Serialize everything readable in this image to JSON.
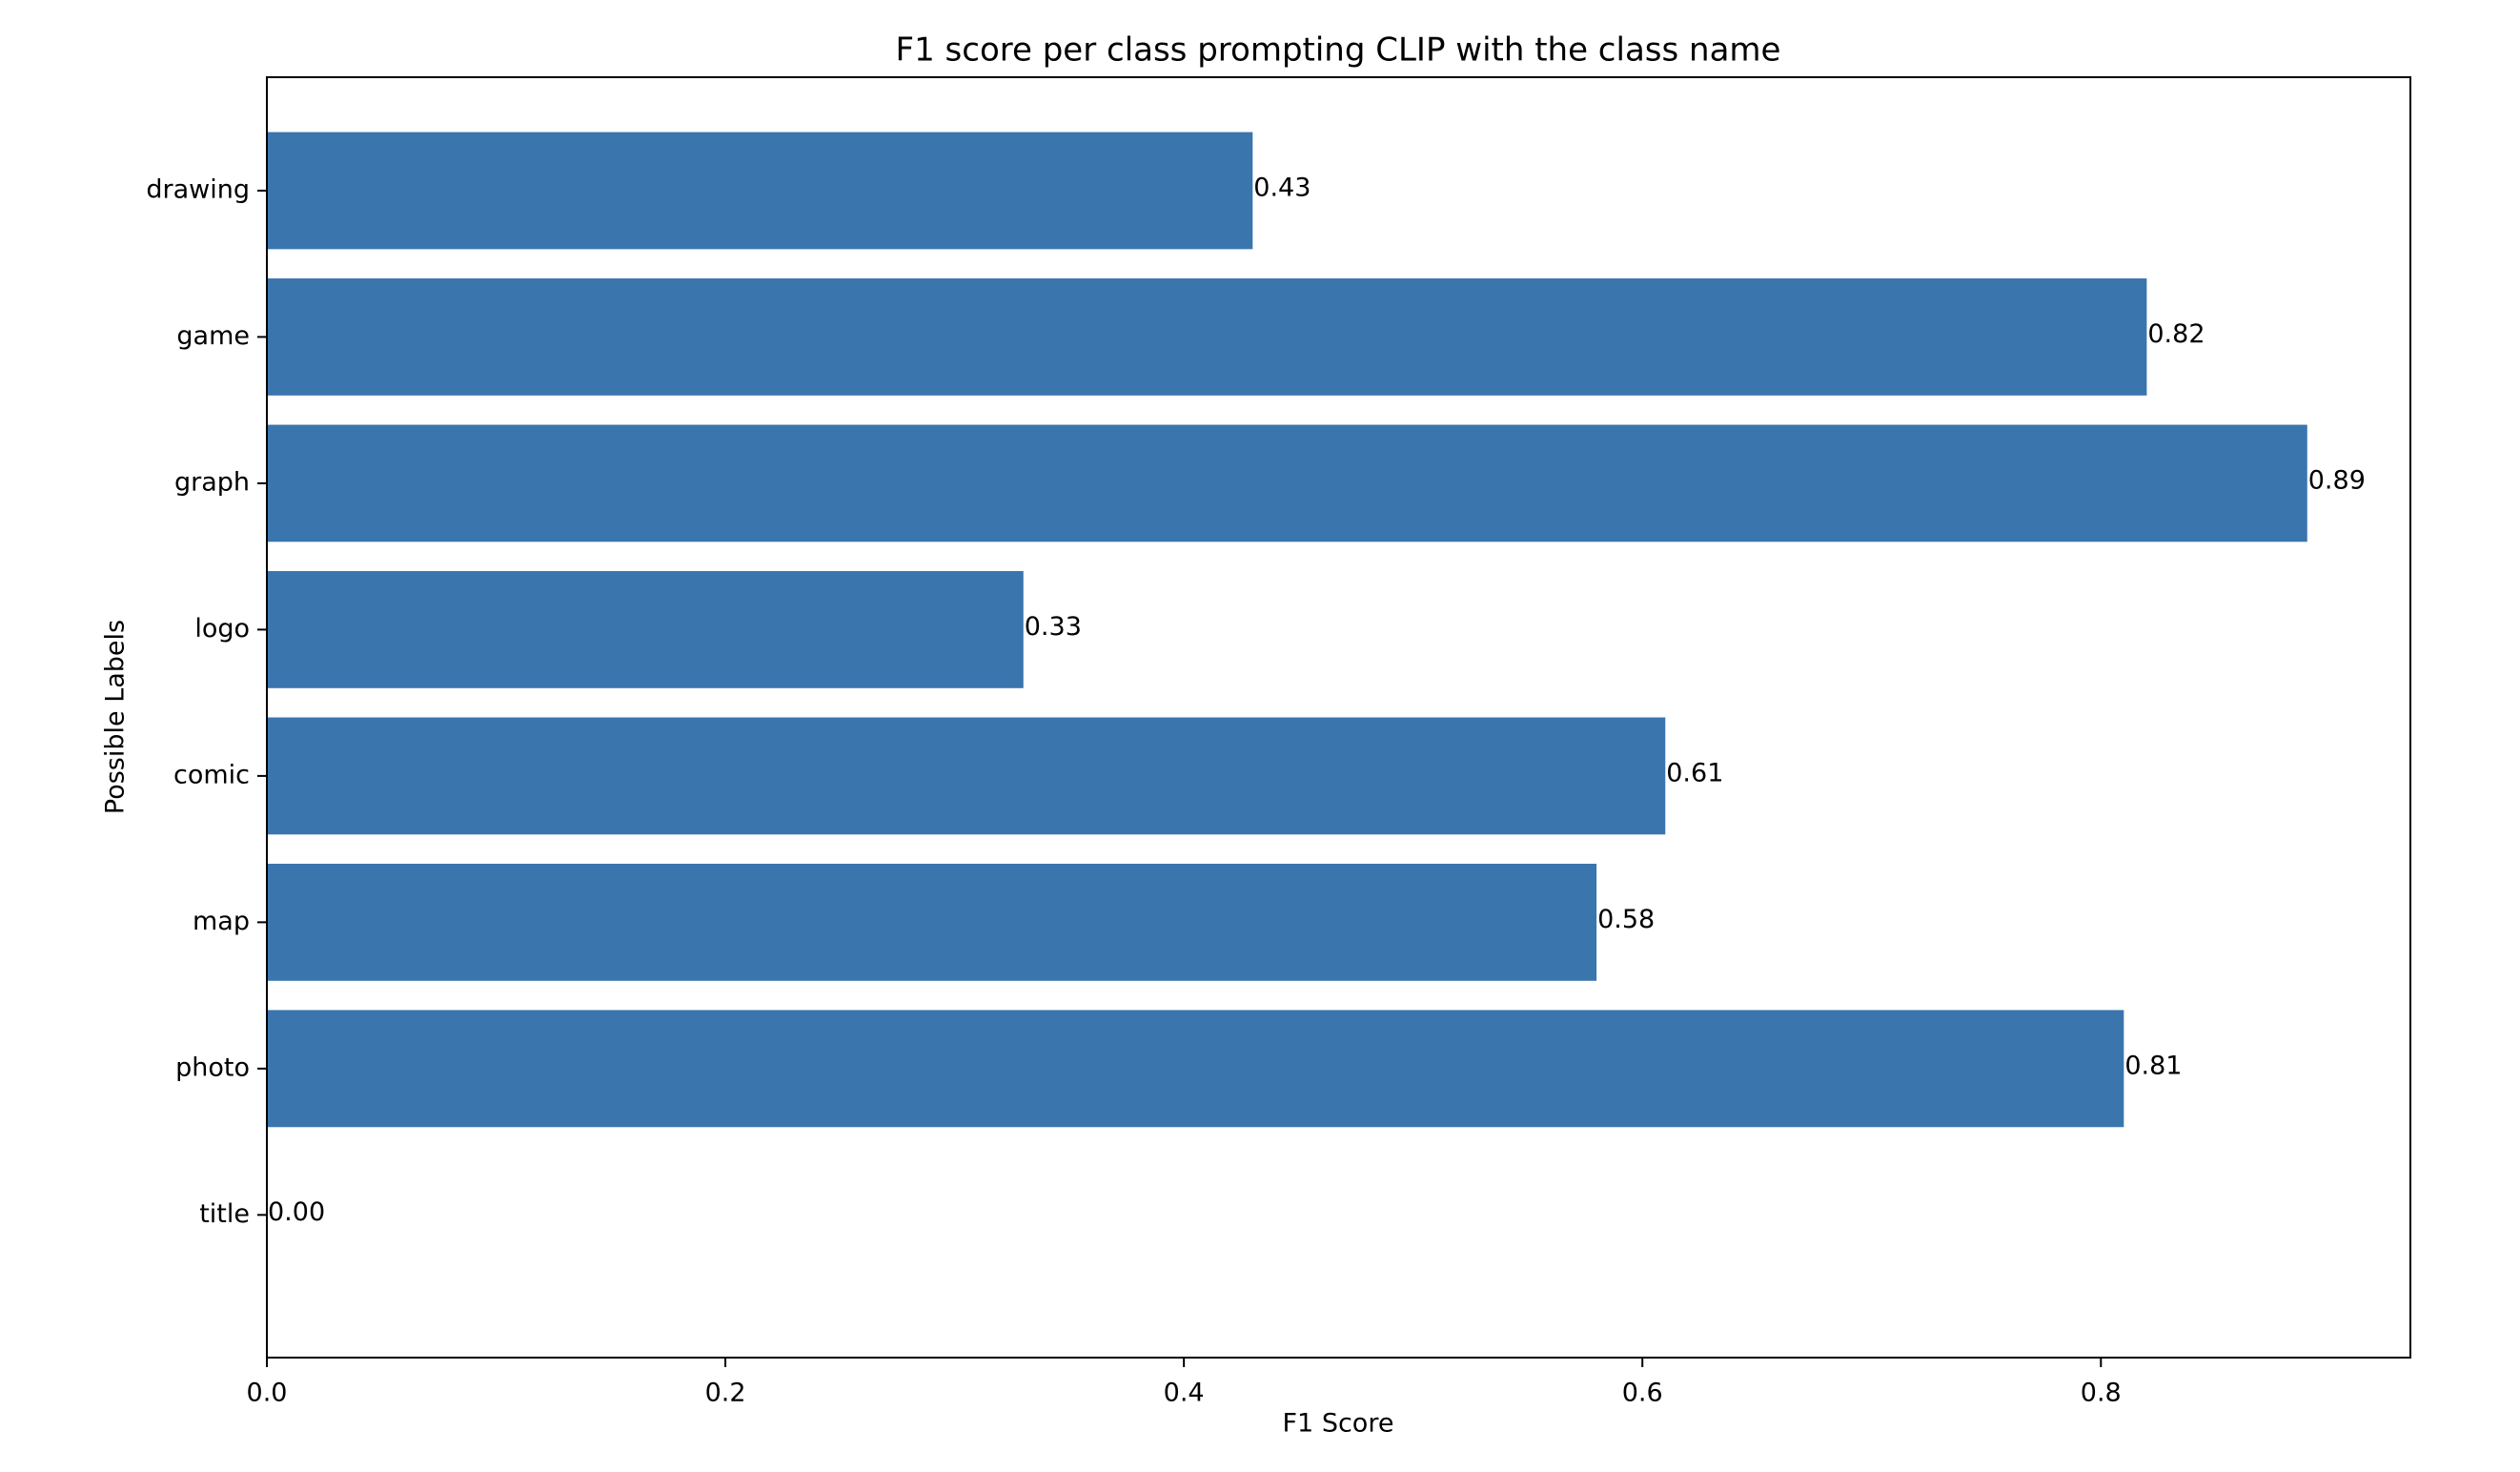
{
  "chart_data": {
    "type": "bar",
    "orientation": "horizontal",
    "title": "F1 score per class prompting CLIP with the class name",
    "xlabel": "F1 Score",
    "ylabel": "Possible Labels",
    "categories": [
      "drawing",
      "game",
      "graph",
      "logo",
      "comic",
      "map",
      "photo",
      "title"
    ],
    "values": [
      0.43,
      0.82,
      0.89,
      0.33,
      0.61,
      0.58,
      0.81,
      0.0
    ],
    "data_labels": [
      "0.43",
      "0.82",
      "0.89",
      "0.33",
      "0.61",
      "0.58",
      "0.81",
      "0.00"
    ],
    "xlim": [
      0,
      0.935
    ],
    "xticks": [
      0.0,
      0.2,
      0.4,
      0.6,
      0.8
    ],
    "xtick_labels": [
      "0.0",
      "0.2",
      "0.4",
      "0.6",
      "0.8"
    ],
    "bar_color": "#3a75ae",
    "grid": false,
    "legend": "none"
  }
}
